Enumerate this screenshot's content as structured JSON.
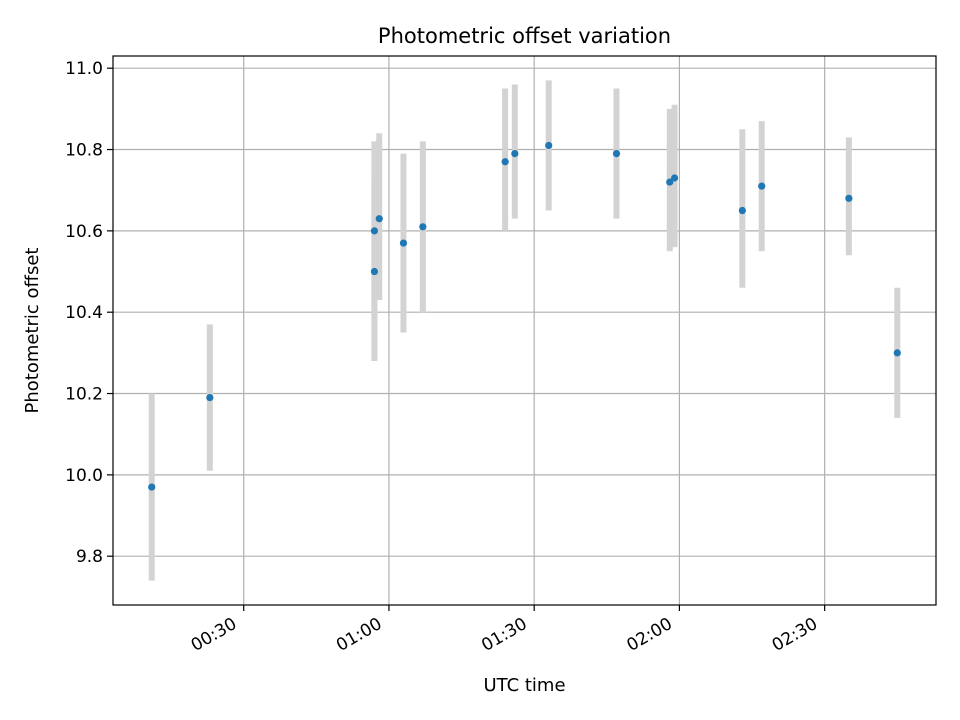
{
  "chart_data": {
    "type": "scatter",
    "title": "Photometric offset variation",
    "xlabel": "UTC time",
    "ylabel": "Photometric offset",
    "xlim": [
      "00:03",
      "02:53"
    ],
    "ylim": [
      9.68,
      11.03
    ],
    "x_ticks": [
      "00:30",
      "01:00",
      "01:30",
      "02:00",
      "02:30"
    ],
    "y_ticks": [
      "9.8",
      "10.0",
      "10.2",
      "10.4",
      "10.6",
      "10.8",
      "11.0"
    ],
    "grid": true,
    "colors": {
      "point": "#1f77b4",
      "errorbar": "#d3d3d3",
      "grid": "#b0b0b0"
    },
    "points": [
      {
        "x": "00:11",
        "y": 9.97,
        "err_low": 9.74,
        "err_high": 10.2
      },
      {
        "x": "00:23",
        "y": 10.19,
        "err_low": 10.01,
        "err_high": 10.37
      },
      {
        "x": "00:57",
        "y": 10.5,
        "err_low": 10.28,
        "err_high": 10.73
      },
      {
        "x": "00:57",
        "y": 10.6,
        "err_low": 10.38,
        "err_high": 10.82
      },
      {
        "x": "00:58",
        "y": 10.63,
        "err_low": 10.43,
        "err_high": 10.84
      },
      {
        "x": "01:03",
        "y": 10.57,
        "err_low": 10.35,
        "err_high": 10.79
      },
      {
        "x": "01:07",
        "y": 10.61,
        "err_low": 10.4,
        "err_high": 10.82
      },
      {
        "x": "01:24",
        "y": 10.77,
        "err_low": 10.6,
        "err_high": 10.95
      },
      {
        "x": "01:26",
        "y": 10.79,
        "err_low": 10.63,
        "err_high": 10.96
      },
      {
        "x": "01:33",
        "y": 10.81,
        "err_low": 10.65,
        "err_high": 10.97
      },
      {
        "x": "01:47",
        "y": 10.79,
        "err_low": 10.63,
        "err_high": 10.95
      },
      {
        "x": "01:58",
        "y": 10.72,
        "err_low": 10.55,
        "err_high": 10.9
      },
      {
        "x": "01:59",
        "y": 10.73,
        "err_low": 10.56,
        "err_high": 10.91
      },
      {
        "x": "02:13",
        "y": 10.65,
        "err_low": 10.46,
        "err_high": 10.85
      },
      {
        "x": "02:17",
        "y": 10.71,
        "err_low": 10.55,
        "err_high": 10.87
      },
      {
        "x": "02:35",
        "y": 10.68,
        "err_low": 10.54,
        "err_high": 10.83
      },
      {
        "x": "02:45",
        "y": 10.3,
        "err_low": 10.14,
        "err_high": 10.46
      }
    ]
  }
}
